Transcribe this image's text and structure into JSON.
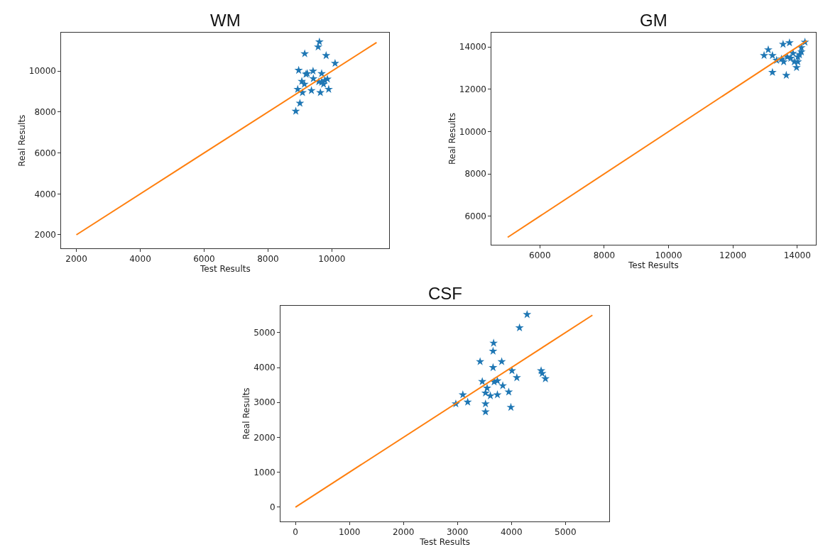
{
  "chart_data": [
    {
      "type": "scatter",
      "title": "WM",
      "xlabel": "Test Results",
      "ylabel": "Real Results",
      "xlim": [
        1530,
        11800
      ],
      "ylim": [
        1340,
        11870
      ],
      "xticks": [
        2000,
        4000,
        6000,
        8000,
        10000
      ],
      "yticks": [
        2000,
        4000,
        6000,
        8000,
        10000
      ],
      "series": [
        {
          "marker": "star",
          "color": "#1f77b4",
          "x": [
            9610,
            9570,
            9150,
            9820,
            10100,
            8960,
            9190,
            9230,
            9410,
            9680,
            9420,
            9060,
            9140,
            9860,
            9590,
            9680,
            9740,
            9780,
            8930,
            9360,
            9900,
            9080,
            9640,
            9000,
            8870
          ],
          "values": [
            11430,
            11180,
            10850,
            10760,
            10380,
            10040,
            9850,
            9880,
            10000,
            9880,
            9630,
            9500,
            9360,
            9610,
            9480,
            9460,
            9360,
            9540,
            9110,
            9050,
            9110,
            8950,
            8950,
            8430,
            8040
          ]
        },
        {
          "type": "line",
          "marker": "none",
          "color": "#ff7f0e",
          "x": [
            2000,
            11400
          ],
          "values": [
            2000,
            11400
          ]
        }
      ]
    },
    {
      "type": "scatter",
      "title": "GM",
      "xlabel": "Test Results",
      "ylabel": "Real Results",
      "xlim": [
        4500,
        14570
      ],
      "ylim": [
        4660,
        14670
      ],
      "xticks": [
        6000,
        8000,
        10000,
        12000,
        14000
      ],
      "yticks": [
        6000,
        8000,
        10000,
        12000,
        14000
      ],
      "series": [
        {
          "marker": "star",
          "color": "#1f77b4",
          "x": [
            14240,
            13760,
            13560,
            13100,
            12970,
            13230,
            14130,
            14130,
            14020,
            13690,
            13800,
            13510,
            13360,
            13580,
            13910,
            14020,
            13980,
            13230,
            13660,
            14070,
            13870
          ],
          "values": [
            14230,
            14200,
            14130,
            13870,
            13600,
            13600,
            13970,
            13770,
            13530,
            13530,
            13470,
            13430,
            13370,
            13300,
            13300,
            13300,
            13030,
            12800,
            12660,
            13630,
            13700
          ]
        },
        {
          "type": "line",
          "marker": "none",
          "color": "#ff7f0e",
          "x": [
            5000,
            14300
          ],
          "values": [
            5000,
            14300
          ]
        }
      ]
    },
    {
      "type": "scatter",
      "title": "CSF",
      "xlabel": "Test Results",
      "ylabel": "Real Results",
      "xlim": [
        -276,
        5815
      ],
      "ylim": [
        -406,
        5770
      ],
      "xticks": [
        0,
        1000,
        2000,
        3000,
        4000,
        5000
      ],
      "yticks": [
        0,
        1000,
        2000,
        3000,
        4000,
        5000
      ],
      "series": [
        {
          "marker": "star",
          "color": "#1f77b4",
          "x": [
            4290,
            4150,
            3670,
            3660,
            3420,
            3820,
            3660,
            4010,
            4100,
            4550,
            4570,
            4630,
            3460,
            3680,
            3740,
            3840,
            3550,
            3520,
            3740,
            3610,
            3950,
            3100,
            3190,
            2970,
            3520,
            3520,
            3990
          ],
          "values": [
            5520,
            5140,
            4700,
            4470,
            4170,
            4170,
            4000,
            3910,
            3710,
            3910,
            3830,
            3680,
            3600,
            3590,
            3620,
            3480,
            3410,
            3270,
            3220,
            3190,
            3300,
            3220,
            3010,
            2960,
            2960,
            2730,
            2860
          ]
        },
        {
          "type": "line",
          "marker": "none",
          "color": "#ff7f0e",
          "x": [
            0,
            5500
          ],
          "values": [
            0,
            5500
          ]
        }
      ]
    }
  ]
}
